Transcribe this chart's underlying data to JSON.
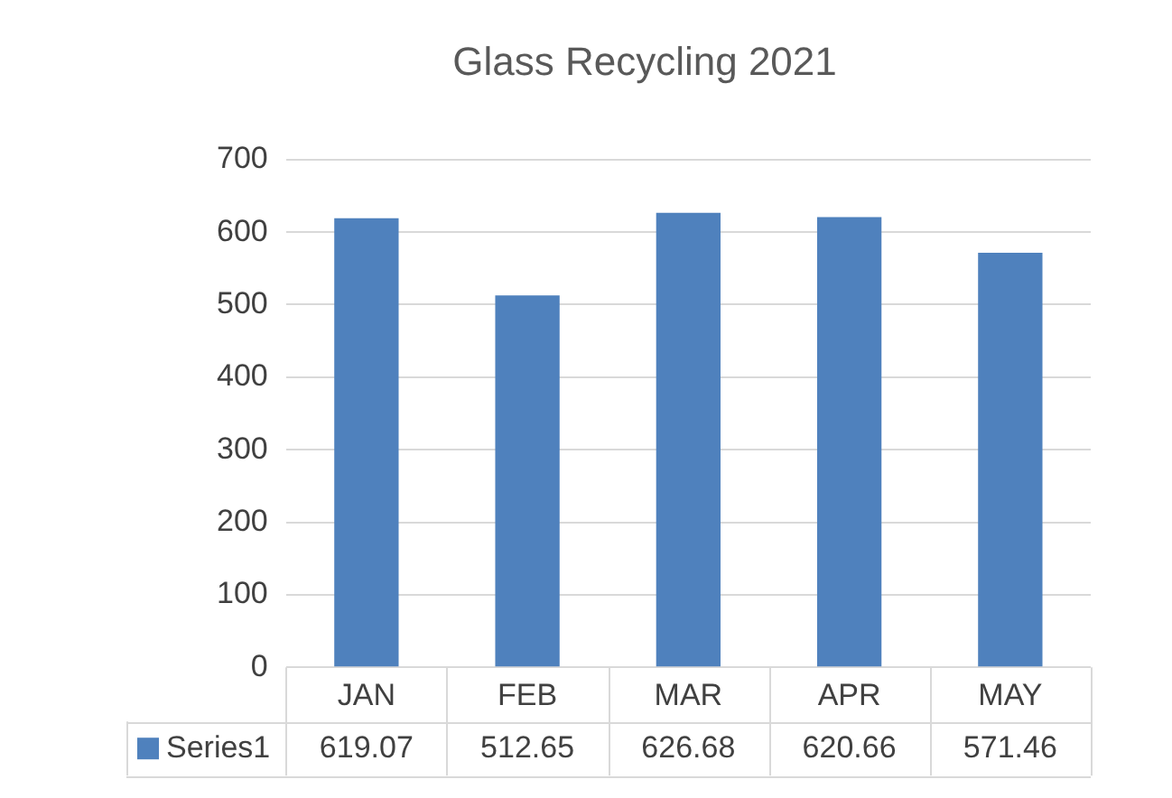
{
  "chart_data": {
    "type": "bar",
    "title": "Glass Recycling 2021",
    "categories": [
      "JAN",
      "FEB",
      "MAR",
      "APR",
      "MAY"
    ],
    "series": [
      {
        "name": "Series1",
        "color": "#4f81bd",
        "values": [
          619.07,
          512.65,
          626.68,
          620.66,
          571.46
        ]
      }
    ],
    "ylim": [
      0,
      700
    ],
    "yticks": [
      0,
      100,
      200,
      300,
      400,
      500,
      600,
      700
    ],
    "grid": "y",
    "legend": "bottom",
    "data_labels": true
  }
}
